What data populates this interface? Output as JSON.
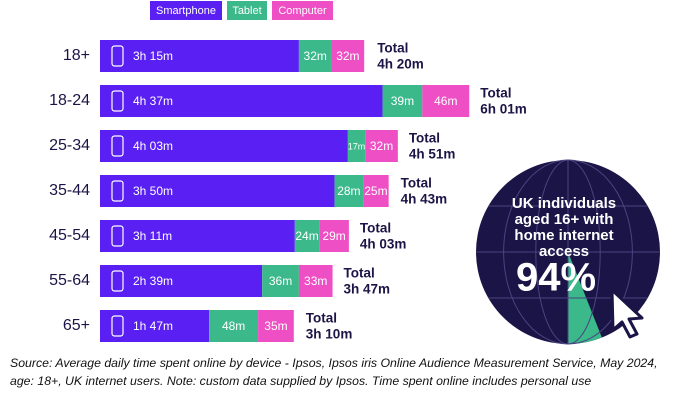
{
  "chart_data": {
    "type": "stacked-bar-horizontal",
    "categories": [
      "18+",
      "18-24",
      "25-34",
      "35-44",
      "45-54",
      "55-64",
      "65+"
    ],
    "series": [
      {
        "name": "Smartphone",
        "color": "#5a1ff2",
        "values": [
          195,
          277,
          243,
          230,
          191,
          159,
          107
        ],
        "value_labels": [
          "3h 15m",
          "4h 37m",
          "4h 03m",
          "3h 50m",
          "3h 11m",
          "2h 39m",
          "1h 47m"
        ]
      },
      {
        "name": "Tablet",
        "color": "#3bb98a",
        "values": [
          32,
          39,
          17,
          28,
          24,
          36,
          48
        ],
        "value_labels": [
          "32m",
          "39m",
          "17m",
          "28m",
          "24m",
          "36m",
          "48m"
        ]
      },
      {
        "name": "Computer",
        "color": "#ee4fc4",
        "values": [
          32,
          46,
          32,
          25,
          29,
          33,
          35
        ],
        "value_labels": [
          "32m",
          "46m",
          "32m",
          "25m",
          "29m",
          "33m",
          "35m"
        ]
      }
    ],
    "totals": {
      "name": "Total",
      "values": [
        260,
        361,
        291,
        283,
        243,
        227,
        190
      ],
      "value_labels": [
        "4h 20m",
        "6h 01m",
        "4h 51m",
        "4h 43m",
        "4h 03m",
        "3h 47m",
        "3h 10m"
      ]
    },
    "infographic": {
      "text": "UK individuals aged 16+ with home internet access",
      "value": 94,
      "value_label": "94%"
    },
    "source": "Source: Average daily time spent online by device - Ipsos, Ipsos iris Online Audience Measurement Service, May 2024, age: 18+, UK internet users. Note: custom data supplied by Ipsos. Time spent online includes personal use"
  }
}
